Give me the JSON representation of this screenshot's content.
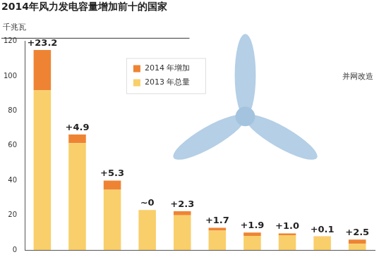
{
  "chart_data": {
    "type": "bar",
    "title": "2014年风力发电容量增加前十的国家",
    "y_label": "千兆瓦",
    "annotations": [
      "并网改造"
    ],
    "categories": [
      null,
      null,
      null,
      null,
      null,
      null,
      null,
      null,
      null,
      null
    ],
    "series": [
      {
        "name": "2014 年增加",
        "color": "#ee8433",
        "values": [
          23.2,
          4.9,
          5.3,
          0,
          2.3,
          1.7,
          1.9,
          1.0,
          0.1,
          2.5
        ],
        "data_labels": true,
        "value_labels": [
          "+23.2",
          "+4.9",
          "+5.3",
          "~0",
          "+2.3",
          "+1.7",
          "+1.9",
          "+1.0",
          "+0.1",
          "+2.5"
        ]
      },
      {
        "name": "2013 年总量",
        "color": "#f9cf6b",
        "values": [
          91.9,
          61.5,
          34.6,
          23.0,
          20.0,
          11.1,
          8.1,
          8.5,
          7.7,
          3.5
        ]
      }
    ],
    "stacked": true,
    "ylim": [
      0,
      120
    ],
    "yticks": [
      0,
      20,
      40,
      60,
      80,
      100,
      120
    ],
    "grid": false,
    "legend": "top",
    "tick_labels": "y"
  }
}
